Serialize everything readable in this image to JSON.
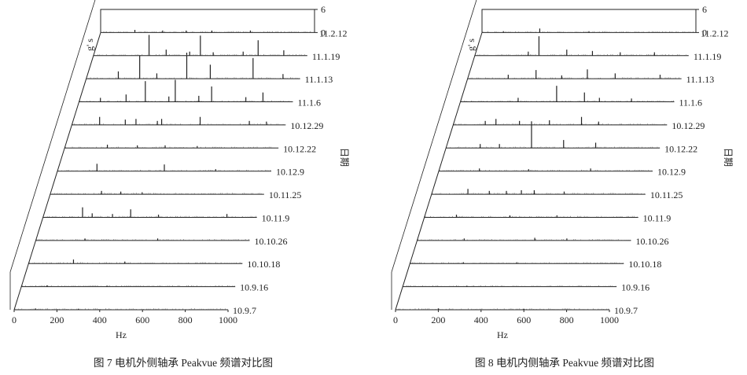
{
  "chart_data": [
    {
      "type": "waterfall",
      "caption": "图 7   电机外侧轴承 Peakvue 频谱对比图",
      "xlabel": "Hz",
      "ylabel": "g' s",
      "zlabel": "日期",
      "x_ticks": [
        "0",
        "200",
        "400",
        "600",
        "800",
        "1000"
      ],
      "xlim": [
        0,
        1000
      ],
      "ylim": [
        0,
        6
      ],
      "y_ticks": [
        "0",
        "6"
      ],
      "dates": [
        "10.9.7",
        "10.9.16",
        "10.10.18",
        "10.10.26",
        "10.11.9",
        "10.11.25",
        "10.12.9",
        "10.12.22",
        "10.12.29",
        "11.1.6",
        "11.1.13",
        "11.1.19",
        "11.2.12"
      ],
      "series": [
        {
          "date": "10.9.7",
          "peaks": [
            [
              100,
              0.2
            ],
            [
              300,
              0.15
            ]
          ]
        },
        {
          "date": "10.9.16",
          "peaks": [
            [
              120,
              0.2
            ],
            [
              400,
              0.15
            ]
          ]
        },
        {
          "date": "10.10.18",
          "peaks": [
            [
              210,
              0.6
            ],
            [
              450,
              0.3
            ]
          ]
        },
        {
          "date": "10.10.26",
          "peaks": [
            [
              230,
              0.3
            ],
            [
              570,
              0.3
            ]
          ]
        },
        {
          "date": "10.11.9",
          "peaks": [
            [
              185,
              1.5
            ],
            [
              230,
              0.6
            ],
            [
              325,
              0.5
            ],
            [
              410,
              1.2
            ],
            [
              540,
              0.4
            ],
            [
              860,
              0.5
            ]
          ]
        },
        {
          "date": "10.11.25",
          "peaks": [
            [
              240,
              0.5
            ],
            [
              330,
              0.4
            ],
            [
              430,
              0.3
            ]
          ]
        },
        {
          "date": "10.12.9",
          "peaks": [
            [
              185,
              1.1
            ],
            [
              500,
              1.0
            ],
            [
              740,
              0.3
            ]
          ]
        },
        {
          "date": "10.12.22",
          "peaks": [
            [
              200,
              0.5
            ],
            [
              340,
              0.4
            ],
            [
              470,
              0.4
            ],
            [
              620,
              0.3
            ]
          ]
        },
        {
          "date": "10.12.29",
          "peaks": [
            [
              130,
              1.2
            ],
            [
              250,
              0.8
            ],
            [
              300,
              0.9
            ],
            [
              400,
              0.6
            ],
            [
              420,
              0.9
            ],
            [
              600,
              1.2
            ],
            [
              830,
              0.6
            ],
            [
              910,
              0.5
            ]
          ]
        },
        {
          "date": "11.1.6",
          "peaks": [
            [
              100,
              0.6
            ],
            [
              220,
              1.1
            ],
            [
              310,
              3.1
            ],
            [
              420,
              0.8
            ],
            [
              450,
              3.3
            ],
            [
              560,
              0.9
            ],
            [
              620,
              2.3
            ],
            [
              780,
              0.7
            ],
            [
              860,
              1.4
            ]
          ]
        },
        {
          "date": "11.1.13",
          "peaks": [
            [
              150,
              1.1
            ],
            [
              250,
              3.5
            ],
            [
              330,
              0.8
            ],
            [
              470,
              3.9
            ],
            [
              580,
              2.1
            ],
            [
              780,
              3.1
            ],
            [
              920,
              0.7
            ]
          ]
        },
        {
          "date": "11.1.19",
          "peaks": [
            [
              260,
              3.1
            ],
            [
              340,
              0.9
            ],
            [
              450,
              0.6
            ],
            [
              500,
              3.0
            ],
            [
              560,
              0.5
            ],
            [
              700,
              0.6
            ],
            [
              770,
              2.3
            ],
            [
              890,
              0.8
            ]
          ]
        },
        {
          "date": "11.2.12",
          "peaks": [
            [
              160,
              0.4
            ],
            [
              290,
              0.3
            ],
            [
              400,
              0.3
            ],
            [
              520,
              0.3
            ],
            [
              700,
              0.3
            ]
          ]
        }
      ]
    },
    {
      "type": "waterfall",
      "caption": "图 8   电机内侧轴承 Peakvue 频谱对比图",
      "xlabel": "Hz",
      "ylabel": "g' s",
      "zlabel": "日期",
      "x_ticks": [
        "0",
        "200",
        "400",
        "600",
        "800",
        "1000"
      ],
      "xlim": [
        0,
        1000
      ],
      "ylim": [
        0,
        6
      ],
      "y_ticks": [
        "0",
        "6"
      ],
      "dates": [
        "10.9.7",
        "10.9.16",
        "10.10.18",
        "10.10.26",
        "10.11.9",
        "10.11.25",
        "10.12.9",
        "10.12.22",
        "10.12.29",
        "11.1.6",
        "11.1.13",
        "11.1.19",
        "11.2.12"
      ],
      "series": [
        {
          "date": "10.9.7",
          "peaks": [
            [
              200,
              0.2
            ],
            [
              600,
              0.15
            ]
          ]
        },
        {
          "date": "10.9.16",
          "peaks": [
            [
              300,
              0.15
            ]
          ]
        },
        {
          "date": "10.10.18",
          "peaks": [
            [
              250,
              0.2
            ],
            [
              500,
              0.2
            ]
          ]
        },
        {
          "date": "10.10.26",
          "peaks": [
            [
              220,
              0.3
            ],
            [
              550,
              0.4
            ],
            [
              700,
              0.3
            ]
          ]
        },
        {
          "date": "10.11.9",
          "peaks": [
            [
              150,
              0.4
            ],
            [
              400,
              0.3
            ],
            [
              620,
              0.3
            ]
          ]
        },
        {
          "date": "10.11.25",
          "peaks": [
            [
              170,
              0.8
            ],
            [
              270,
              0.5
            ],
            [
              350,
              0.5
            ],
            [
              420,
              0.6
            ],
            [
              480,
              0.6
            ],
            [
              620,
              0.4
            ]
          ]
        },
        {
          "date": "10.12.9",
          "peaks": [
            [
              190,
              0.4
            ],
            [
              420,
              0.3
            ],
            [
              710,
              0.4
            ]
          ]
        },
        {
          "date": "10.12.22",
          "peaks": [
            [
              160,
              0.6
            ],
            [
              250,
              0.6
            ],
            [
              400,
              4.0
            ],
            [
              550,
              1.2
            ],
            [
              700,
              0.8
            ]
          ]
        },
        {
          "date": "10.12.29",
          "peaks": [
            [
              150,
              0.6
            ],
            [
              200,
              0.9
            ],
            [
              310,
              0.6
            ],
            [
              450,
              0.7
            ],
            [
              600,
              1.2
            ],
            [
              680,
              0.5
            ]
          ]
        },
        {
          "date": "11.1.6",
          "peaks": [
            [
              270,
              0.6
            ],
            [
              450,
              2.4
            ],
            [
              580,
              1.4
            ],
            [
              650,
              0.6
            ],
            [
              800,
              0.5
            ]
          ]
        },
        {
          "date": "11.1.13",
          "peaks": [
            [
              190,
              0.6
            ],
            [
              320,
              1.3
            ],
            [
              440,
              0.5
            ],
            [
              560,
              1.4
            ],
            [
              690,
              0.8
            ],
            [
              900,
              0.6
            ]
          ]
        },
        {
          "date": "11.1.19",
          "peaks": [
            [
              250,
              0.6
            ],
            [
              300,
              2.9
            ],
            [
              430,
              0.9
            ],
            [
              550,
              0.7
            ],
            [
              680,
              0.5
            ],
            [
              840,
              0.5
            ]
          ]
        },
        {
          "date": "11.2.12",
          "peaks": [
            [
              100,
              0.2
            ],
            [
              270,
              0.6
            ],
            [
              500,
              0.2
            ]
          ]
        }
      ]
    }
  ]
}
